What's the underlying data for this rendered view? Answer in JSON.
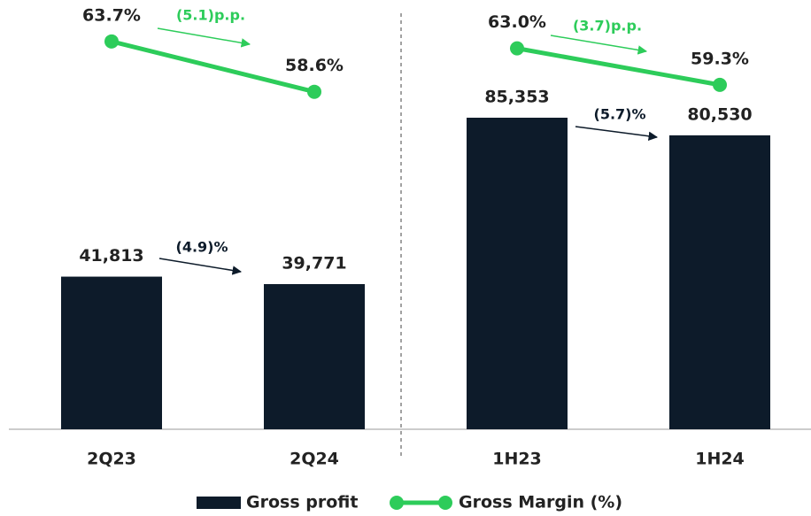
{
  "chart_data": [
    {
      "type": "bar",
      "categories": [
        "2Q23",
        "2Q24"
      ],
      "ylim": [
        0,
        117600
      ],
      "y2lim": [
        24.4,
        67.9
      ],
      "series": [
        {
          "name": "Gross profit",
          "type": "bar",
          "color": "#0d1b2a",
          "values": [
            41813,
            39771
          ],
          "value_labels": [
            "41,813",
            "39,771"
          ]
        },
        {
          "name": "Gross Margin (%)",
          "type": "line",
          "axis": "y2",
          "color": "#2dcc5a",
          "values": [
            63.7,
            58.6
          ],
          "value_labels": [
            "63.7%",
            "58.6%"
          ]
        }
      ],
      "annotations": [
        "(4.9)%",
        "(5.1)p.p."
      ]
    },
    {
      "type": "bar",
      "categories": [
        "1H23",
        "1H24"
      ],
      "ylim": [
        0,
        117600
      ],
      "y2lim": [
        24.4,
        67.9
      ],
      "series": [
        {
          "name": "Gross profit",
          "type": "bar",
          "color": "#0d1b2a",
          "values": [
            85353,
            80530
          ],
          "value_labels": [
            "85,353",
            "80,530"
          ]
        },
        {
          "name": "Gross Margin (%)",
          "type": "line",
          "axis": "y2",
          "color": "#2dcc5a",
          "values": [
            63.0,
            59.3
          ],
          "value_labels": [
            "63.0%",
            "59.3%"
          ]
        }
      ],
      "annotations": [
        "(5.7)%",
        "(3.7)p.p."
      ]
    }
  ]
}
